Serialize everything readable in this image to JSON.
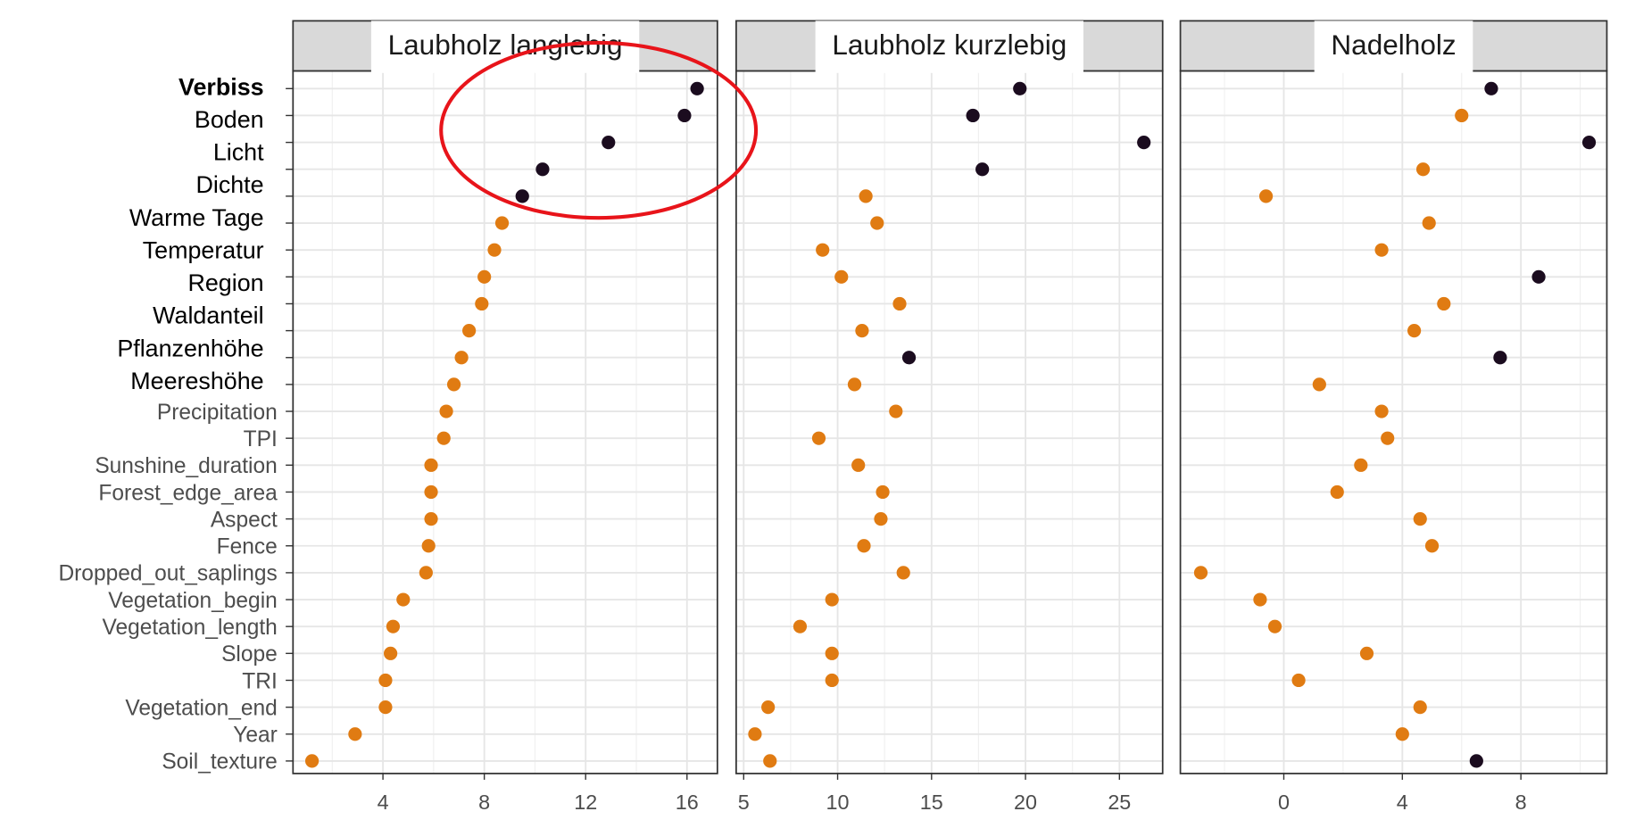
{
  "chart_data": {
    "type": "scatter",
    "grid": true,
    "categories": [
      null,
      null,
      null,
      null,
      null,
      null,
      null,
      null,
      null,
      null,
      null,
      null,
      "Precipitation",
      "TPI",
      "Sunshine_duration",
      "Forest_edge_area",
      "Aspect",
      "Fence",
      "Dropped_out_saplings",
      "Vegetation_begin",
      "Vegetation_length",
      "Slope",
      "TRI",
      "Vegetation_end",
      "Year",
      "Soil_texture"
    ],
    "overlay_labels": [
      "Verbiss",
      "Boden",
      "Licht",
      "Dichte",
      "Warme Tage",
      "Temperatur",
      "Region",
      "Waldanteil",
      "Pflanzenhöhe",
      "Meereshöhe"
    ],
    "panels": [
      {
        "title": "Laubholz langlebig",
        "xlim": [
          0.45,
          17.2
        ],
        "xticks": [
          4,
          8,
          12,
          16
        ],
        "values": [
          16.4,
          15.9,
          12.9,
          10.3,
          9.5,
          8.7,
          8.4,
          8.0,
          7.9,
          7.4,
          7.1,
          6.8,
          6.5,
          6.4,
          5.9,
          5.9,
          5.9,
          5.8,
          5.7,
          4.8,
          4.4,
          4.3,
          4.1,
          4.1,
          2.9,
          1.2
        ],
        "colors": [
          "#1b0c1f",
          "#1b0c1f",
          "#1b0c1f",
          "#1b0c1f",
          "#1b0c1f",
          "#e07b12",
          "#e07b12",
          "#e07b12",
          "#e07b12",
          "#e07b12",
          "#e07b12",
          "#e07b12",
          "#e07b12",
          "#e07b12",
          "#e07b12",
          "#e07b12",
          "#e07b12",
          "#e07b12",
          "#e07b12",
          "#e07b12",
          "#e07b12",
          "#e07b12",
          "#e07b12",
          "#e07b12",
          "#e07b12",
          "#e07b12"
        ]
      },
      {
        "title": "Laubholz kurzlebig",
        "xlim": [
          4.6,
          27.3
        ],
        "xticks": [
          5,
          10,
          15,
          20,
          25
        ],
        "values": [
          19.7,
          17.2,
          26.3,
          17.7,
          11.5,
          12.1,
          9.2,
          10.2,
          13.3,
          11.3,
          13.8,
          10.9,
          13.1,
          9.0,
          11.1,
          12.4,
          12.3,
          11.4,
          13.5,
          9.7,
          8.0,
          9.7,
          9.7,
          6.3,
          5.6,
          6.4
        ],
        "colors": [
          "#1b0c1f",
          "#1b0c1f",
          "#1b0c1f",
          "#1b0c1f",
          "#e07b12",
          "#e07b12",
          "#e07b12",
          "#e07b12",
          "#e07b12",
          "#e07b12",
          "#1b0c1f",
          "#e07b12",
          "#e07b12",
          "#e07b12",
          "#e07b12",
          "#e07b12",
          "#e07b12",
          "#e07b12",
          "#e07b12",
          "#e07b12",
          "#e07b12",
          "#e07b12",
          "#e07b12",
          "#e07b12",
          "#e07b12",
          "#e07b12"
        ]
      },
      {
        "title": "Nadelholz",
        "xlim": [
          -3.49,
          10.9
        ],
        "xticks": [
          0,
          4,
          8
        ],
        "values": [
          7.0,
          6.0,
          10.3,
          4.7,
          -0.6,
          4.9,
          3.3,
          8.6,
          5.4,
          4.4,
          7.3,
          1.2,
          3.3,
          3.5,
          2.6,
          1.8,
          4.6,
          5.0,
          -2.8,
          -0.8,
          -0.3,
          2.8,
          0.5,
          4.6,
          4.0,
          6.5
        ],
        "colors": [
          "#1b0c1f",
          "#e07b12",
          "#1b0c1f",
          "#e07b12",
          "#e07b12",
          "#e07b12",
          "#e07b12",
          "#1b0c1f",
          "#e07b12",
          "#e07b12",
          "#1b0c1f",
          "#e07b12",
          "#e07b12",
          "#e07b12",
          "#e07b12",
          "#e07b12",
          "#e07b12",
          "#e07b12",
          "#e07b12",
          "#e07b12",
          "#e07b12",
          "#e07b12",
          "#e07b12",
          "#e07b12",
          "#e07b12",
          "#1b0c1f"
        ]
      }
    ]
  }
}
